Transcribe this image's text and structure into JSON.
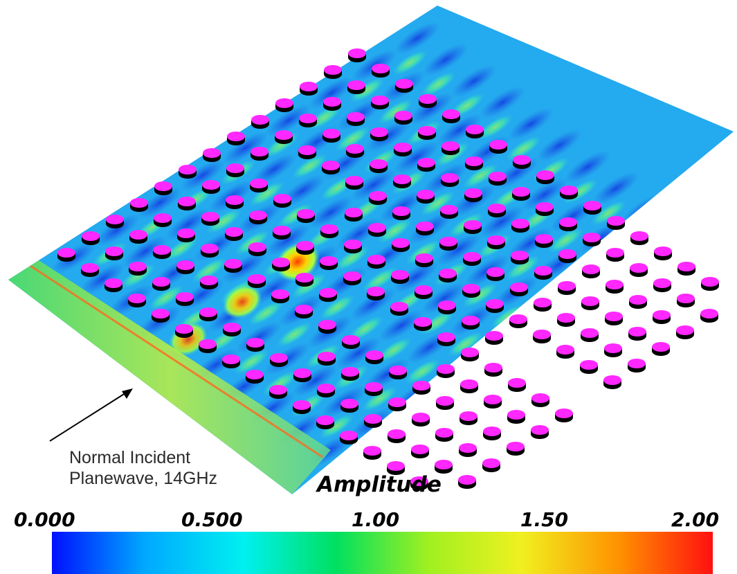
{
  "annotation": {
    "line1": "Normal Incident",
    "line2": "Planewave, 14GHz"
  },
  "colorbar": {
    "title": "Amplitude",
    "ticks": [
      "0.000",
      "0.500",
      "1.00",
      "1.50",
      "2.00"
    ],
    "range": [
      0,
      2
    ],
    "colors": [
      "#0010ff",
      "#00a8ff",
      "#00f0f0",
      "#00e060",
      "#a0f020",
      "#f0f020",
      "#ff9000",
      "#ff1010"
    ]
  },
  "field": {
    "background": "#24aaee",
    "low_color": "#1450e6",
    "mid_color": "#5fe0c8",
    "high_color": "#ff6010",
    "post_color": "#ff28ff"
  }
}
